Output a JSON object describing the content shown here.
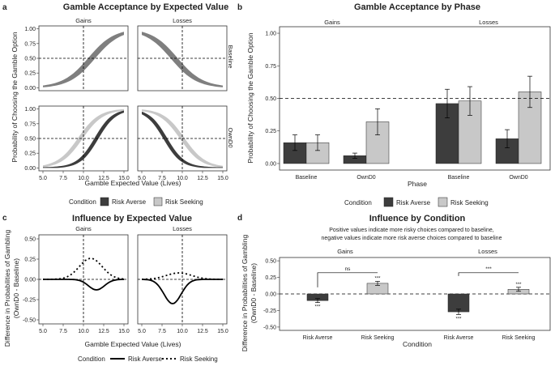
{
  "figure": {
    "panels": [
      {
        "id": "a",
        "letter": "a"
      },
      {
        "id": "b",
        "letter": "b"
      },
      {
        "id": "c",
        "letter": "c"
      },
      {
        "id": "d",
        "letter": "d"
      }
    ]
  },
  "chart_data": [
    {
      "id": "a",
      "type": "area",
      "title": "Gamble Acceptance by Expected Value",
      "xlabel": "Gamble Expected Value (Lives)",
      "ylabel": "Probability of Choosing the Gamble Option",
      "col_labels": [
        "Gains",
        "Losses"
      ],
      "row_labels": [
        "Baseline",
        "OwnD0"
      ],
      "x_ticks": [
        "5.0",
        "7.5",
        "10.0",
        "12.5",
        "15.0"
      ],
      "y_ticks": [
        "0.00",
        "0.25",
        "0.50",
        "0.75",
        "1.00"
      ],
      "xlim": [
        4.5,
        15.5
      ],
      "ylim": [
        -0.05,
        1.05
      ],
      "ref_x": 10,
      "ref_y": 0.5,
      "legend_title": "Condition",
      "legend": [
        {
          "name": "Risk Averse",
          "color": "#3d3d3d"
        },
        {
          "name": "Risk Seeking",
          "color": "#c8c8c8"
        }
      ],
      "baseline_color": "#7f7f7f",
      "curves": {
        "gains_baseline": {
          "center": 11.0,
          "scale": 1.6,
          "band": 0.06
        },
        "losses_baseline": {
          "center": 9.0,
          "scale": -1.6,
          "band": 0.06
        },
        "gains_averse": {
          "center": 11.6,
          "scale": 1.1,
          "band": 0.05
        },
        "gains_seeking": {
          "center": 9.6,
          "scale": 1.3,
          "band": 0.05
        },
        "losses_averse": {
          "center": 7.9,
          "scale": -1.1,
          "band": 0.05
        },
        "losses_seeking": {
          "center": 10.0,
          "scale": -1.3,
          "band": 0.05
        }
      }
    },
    {
      "id": "b",
      "type": "bar",
      "title": "Gamble Acceptance by Phase",
      "xlabel": "Phase",
      "ylabel": "Probability of Choosing the Gamble Option",
      "facets": [
        "Gains",
        "Losses"
      ],
      "categories": [
        "Baseline",
        "OwnD0"
      ],
      "y_ticks": [
        "0.00",
        "0.25",
        "0.50",
        "0.75",
        "1.00"
      ],
      "ylim": [
        -0.05,
        1.05
      ],
      "ref_y": 0.5,
      "legend_title": "Condition",
      "series": [
        {
          "name": "Risk Averse",
          "color": "#3d3d3d",
          "values": {
            "Gains": [
              0.16,
              0.06
            ],
            "Losses": [
              0.46,
              0.19
            ]
          },
          "errors": {
            "Gains": [
              0.06,
              0.02
            ],
            "Losses": [
              0.11,
              0.07
            ]
          }
        },
        {
          "name": "Risk Seeking",
          "color": "#c8c8c8",
          "values": {
            "Gains": [
              0.16,
              0.32
            ],
            "Losses": [
              0.48,
              0.55
            ]
          },
          "errors": {
            "Gains": [
              0.06,
              0.1
            ],
            "Losses": [
              0.11,
              0.12
            ]
          }
        }
      ]
    },
    {
      "id": "c",
      "type": "line",
      "title": "Influence by Expected Value",
      "xlabel": "Gamble Expected Value (Lives)",
      "ylabel": "Difference in Probabilities of Gambling",
      "ylabel2": "(OwnD0 - Baseline)",
      "col_labels": [
        "Gains",
        "Losses"
      ],
      "x_ticks": [
        "5.0",
        "7.5",
        "10.0",
        "12.5",
        "15.0"
      ],
      "y_ticks": [
        "-0.50",
        "-0.25",
        "0.00",
        "0.25",
        "0.50"
      ],
      "xlim": [
        4.5,
        15.5
      ],
      "ylim": [
        -0.55,
        0.55
      ],
      "ref_x": 10,
      "ref_y": 0,
      "legend_title": "Condition",
      "legend": [
        {
          "name": "Risk Averse",
          "style": "solid"
        },
        {
          "name": "Risk Seeking",
          "style": "dotted"
        }
      ]
    },
    {
      "id": "d",
      "type": "bar",
      "title": "Influence by Condition",
      "subtitle1": "Positive values indicate more risky choices compared to baseline,",
      "subtitle2": "negative values indicate more risk averse choices compared to baseline",
      "xlabel": "Condition",
      "ylabel": "Difference in Probabilities of Gambling",
      "ylabel2": "(OwnD0 - Baseline)",
      "facets": [
        "Gains",
        "Losses"
      ],
      "categories": [
        "Risk Averse",
        "Risk Seeking"
      ],
      "y_ticks": [
        "-0.50",
        "-0.25",
        "0.00",
        "0.25",
        "0.50"
      ],
      "ylim": [
        -0.55,
        0.55
      ],
      "ref_y": 0,
      "values": {
        "Gains": [
          -0.1,
          0.16
        ],
        "Losses": [
          -0.27,
          0.07
        ]
      },
      "errors": {
        "Gains": [
          0.03,
          0.03
        ],
        "Losses": [
          0.04,
          0.03
        ]
      },
      "colors": [
        "#3d3d3d",
        "#c8c8c8"
      ],
      "bar_sig": "***",
      "comparisons": {
        "Gains": "ns",
        "Losses": "***"
      },
      "bracket_y": {
        "Gains": [
          0.1,
          0.32
        ],
        "Losses": [
          0.27,
          0.32
        ]
      }
    }
  ]
}
